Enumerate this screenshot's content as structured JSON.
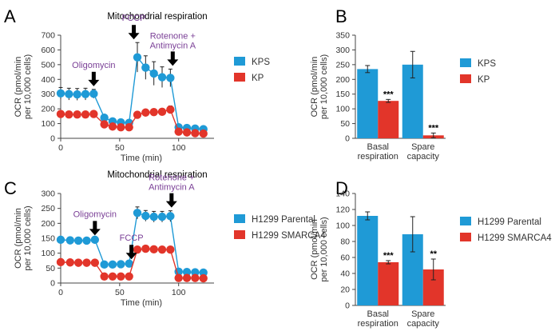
{
  "colors": {
    "blue": "#1f9ad6",
    "red": "#e2352a",
    "annot": "#7a3f96"
  },
  "chart_data": [
    {
      "id": "A",
      "type": "line",
      "panel_letter": "A",
      "title": "Mitochondrial respiration",
      "xlabel": "Time (min)",
      "ylabel_line1": "OCR (pmol/min",
      "ylabel_line2": "per 10,000 cells)",
      "xlim": [
        0,
        130
      ],
      "ylim": [
        0,
        700
      ],
      "xticks": [
        0,
        50,
        100
      ],
      "yticks": [
        0,
        100,
        200,
        300,
        400,
        500,
        600,
        700
      ],
      "legend_position": "right",
      "annotations": [
        {
          "text": "Oligomycin",
          "x": 28
        },
        {
          "text": "FCCP",
          "x": 62
        },
        {
          "text": "Rotenone +",
          "text2": "Antimycin A",
          "x": 95
        }
      ],
      "series": [
        {
          "name": "KPS",
          "color": "#1f9ad6",
          "x": [
            0,
            7,
            14,
            21,
            28,
            37,
            44,
            51,
            58,
            65,
            72,
            79,
            86,
            93,
            100,
            107,
            114,
            121
          ],
          "y": [
            305,
            300,
            298,
            300,
            302,
            140,
            115,
            108,
            105,
            550,
            480,
            440,
            415,
            410,
            75,
            70,
            66,
            62
          ],
          "err": [
            40,
            40,
            40,
            40,
            30,
            15,
            20,
            20,
            20,
            100,
            80,
            80,
            70,
            60,
            10,
            10,
            8,
            8
          ]
        },
        {
          "name": "KP",
          "color": "#e2352a",
          "x": [
            0,
            7,
            14,
            21,
            28,
            37,
            44,
            51,
            58,
            65,
            72,
            79,
            86,
            93,
            100,
            107,
            114,
            121
          ],
          "y": [
            165,
            162,
            162,
            162,
            165,
            95,
            80,
            75,
            75,
            160,
            175,
            178,
            180,
            195,
            45,
            40,
            35,
            32
          ],
          "err": [
            10,
            8,
            8,
            8,
            8,
            8,
            5,
            5,
            5,
            15,
            20,
            20,
            20,
            25,
            5,
            5,
            5,
            5
          ]
        }
      ]
    },
    {
      "id": "B",
      "type": "bar",
      "panel_letter": "B",
      "ylabel_line1": "OCR (pmol/min",
      "ylabel_line2": "per 10,000 cells)",
      "ylim": [
        0,
        350
      ],
      "yticks": [
        0,
        50,
        100,
        150,
        200,
        250,
        300,
        350
      ],
      "categories": [
        [
          "Basal",
          "respiration"
        ],
        [
          "Spare",
          "capacity"
        ]
      ],
      "legend_position": "right",
      "series": [
        {
          "name": "KPS",
          "color": "#1f9ad6",
          "values": [
            235,
            250
          ],
          "err": [
            12,
            45
          ]
        },
        {
          "name": "KP",
          "color": "#e2352a",
          "values": [
            127,
            10
          ],
          "err": [
            5,
            8
          ],
          "significance": [
            "***",
            "***"
          ]
        }
      ]
    },
    {
      "id": "C",
      "type": "line",
      "panel_letter": "C",
      "title": "Mitochondrial respiration",
      "xlabel": "Time (min)",
      "ylabel_line1": "OCR (pmol/min",
      "ylabel_line2": "per 10,000 cells)",
      "xlim": [
        0,
        130
      ],
      "ylim": [
        0,
        300
      ],
      "xticks": [
        0,
        50,
        100
      ],
      "yticks": [
        0,
        50,
        100,
        150,
        200,
        250,
        300
      ],
      "legend_position": "right",
      "annotations": [
        {
          "text": "Oligomycin",
          "x": 29
        },
        {
          "text": "FCCP",
          "x": 60
        },
        {
          "text": "Rotenone +",
          "text2": "Antimycin A",
          "x": 94
        }
      ],
      "series": [
        {
          "name": "H1299 Parental",
          "color": "#1f9ad6",
          "x": [
            0,
            8,
            15,
            22,
            29,
            37,
            44,
            51,
            58,
            65,
            72,
            79,
            86,
            93,
            100,
            107,
            114,
            121
          ],
          "y": [
            145,
            143,
            142,
            142,
            145,
            62,
            62,
            63,
            65,
            235,
            225,
            222,
            222,
            224,
            38,
            37,
            36,
            35
          ],
          "err": [
            4,
            4,
            4,
            4,
            4,
            4,
            4,
            4,
            4,
            20,
            18,
            18,
            18,
            18,
            4,
            4,
            4,
            4
          ]
        },
        {
          "name": "H1299 SMARCA4",
          "color": "#e2352a",
          "x": [
            0,
            8,
            15,
            22,
            29,
            37,
            44,
            51,
            58,
            65,
            72,
            79,
            86,
            93,
            100,
            107,
            114,
            121
          ],
          "y": [
            70,
            69,
            68,
            68,
            68,
            22,
            22,
            22,
            22,
            112,
            115,
            113,
            112,
            112,
            17,
            17,
            17,
            16
          ],
          "err": [
            3,
            3,
            3,
            3,
            3,
            3,
            3,
            3,
            3,
            10,
            10,
            10,
            10,
            10,
            3,
            3,
            3,
            3
          ]
        }
      ]
    },
    {
      "id": "D",
      "type": "bar",
      "panel_letter": "D",
      "ylabel_line1": "OCR (pmol/min",
      "ylabel_line2": "per 10,000 cells)",
      "ylim": [
        0,
        140
      ],
      "yticks": [
        0,
        20,
        40,
        60,
        80,
        100,
        120,
        140
      ],
      "categories": [
        [
          "Basal",
          "respiration"
        ],
        [
          "Spare",
          "capacity"
        ]
      ],
      "legend_position": "right",
      "series": [
        {
          "name": "H1299 Parental",
          "color": "#1f9ad6",
          "values": [
            112,
            89
          ],
          "err": [
            5,
            22
          ]
        },
        {
          "name": "H1299 SMARCA4",
          "color": "#e2352a",
          "values": [
            54,
            45
          ],
          "err": [
            2,
            13
          ],
          "significance": [
            "***",
            "**"
          ]
        }
      ]
    }
  ]
}
